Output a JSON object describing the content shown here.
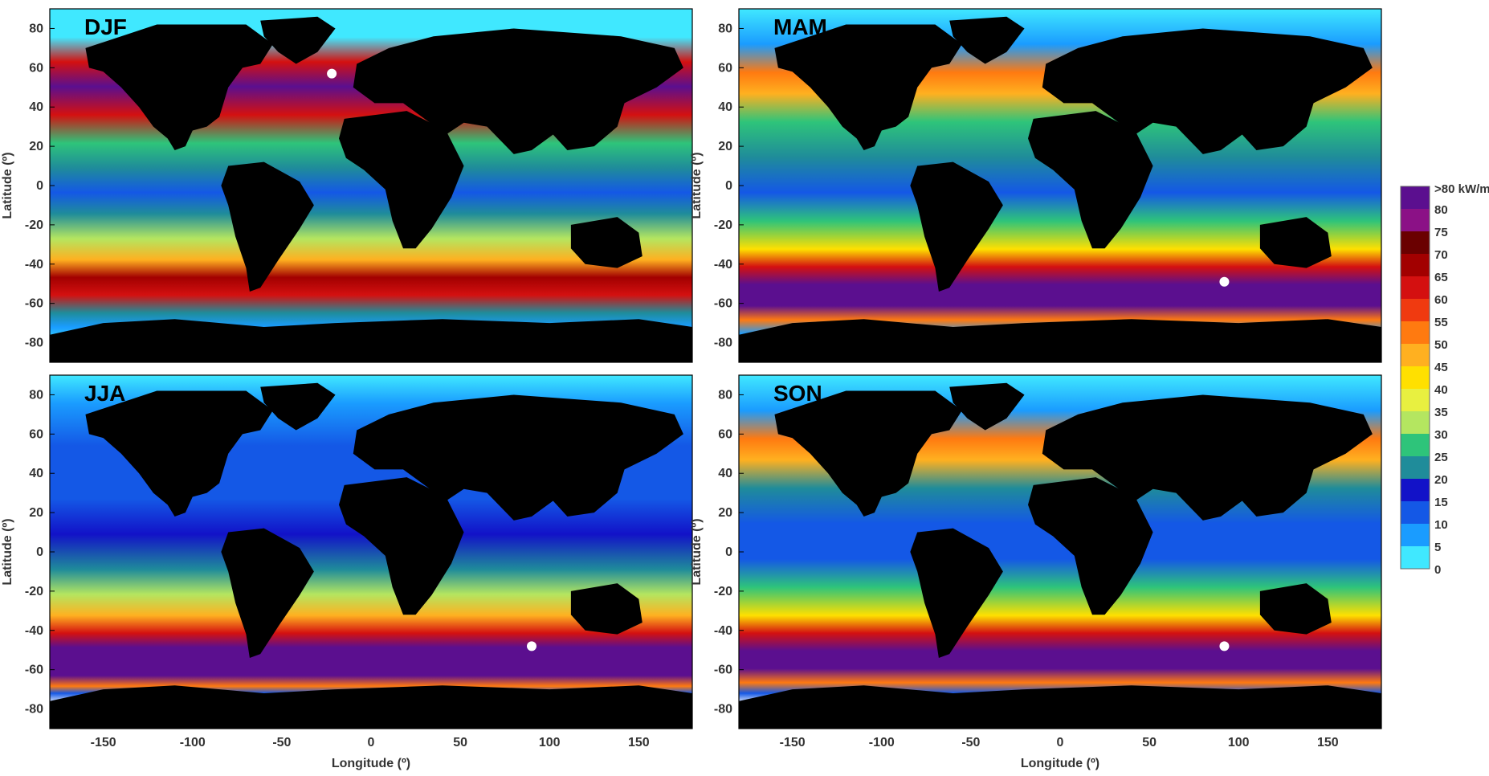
{
  "figure": {
    "panels": [
      {
        "id": "djf",
        "label": "DJF",
        "marker": {
          "lon": -22,
          "lat": 57
        }
      },
      {
        "id": "mam",
        "label": "MAM",
        "marker": {
          "lon": 92,
          "lat": -49
        }
      },
      {
        "id": "jja",
        "label": "JJA",
        "marker": {
          "lon": 90,
          "lat": -48
        }
      },
      {
        "id": "son",
        "label": "SON",
        "marker": {
          "lon": 92,
          "lat": -48
        }
      }
    ],
    "axes": {
      "xlabel": "Longitude (º)",
      "ylabel": "Latitude (º)",
      "xlim": [
        -180,
        180
      ],
      "ylim": [
        -90,
        90
      ],
      "xticks": [
        "-150",
        "-100",
        "-50",
        "0",
        "50",
        "100",
        "150"
      ],
      "yticks": [
        "80",
        "60",
        "40",
        "20",
        "0",
        "-20",
        "-40",
        "-60",
        "-80"
      ]
    },
    "colorbar": {
      "unit_label": ">80 kW/m",
      "labels": [
        "80",
        "75",
        "70",
        "65",
        "60",
        "55",
        "50",
        "45",
        "40",
        "35",
        "30",
        "25",
        "20",
        "15",
        "10",
        "5",
        "0"
      ],
      "colors": [
        "#5b0f8f",
        "#8b1186",
        "#6a0000",
        "#a20000",
        "#d41010",
        "#f03a10",
        "#ff7a10",
        "#ffb020",
        "#ffe000",
        "#e8f040",
        "#b4e660",
        "#2ec47a",
        "#1f8c9a",
        "#1212c8",
        "#1458e6",
        "#1a9cff",
        "#40e8ff"
      ]
    },
    "land_color": "#000000",
    "ice_color": "#ffffff",
    "marker_color": "#ffffff"
  }
}
